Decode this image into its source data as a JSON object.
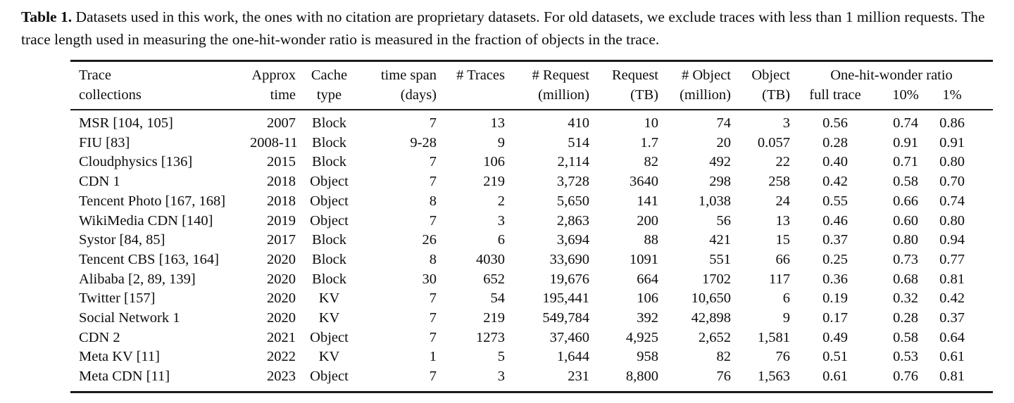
{
  "caption": {
    "label": "Table 1.",
    "text": " Datasets used in this work, the ones with no citation are proprietary datasets. For old datasets, we exclude traces with less than 1 million requests. The trace length used in measuring the one-hit-wonder ratio is measured in the fraction of objects in the trace."
  },
  "table": {
    "group_header": "One-hit-wonder ratio",
    "columns": [
      {
        "id": "trace_collections",
        "line1": "Trace",
        "line2": "collections",
        "align": "left"
      },
      {
        "id": "approx_time",
        "line1": "Approx",
        "line2": "time",
        "align": "right"
      },
      {
        "id": "cache_type",
        "line1": "Cache",
        "line2": "type",
        "align": "center"
      },
      {
        "id": "time_span_days",
        "line1": "time span",
        "line2": "(days)",
        "align": "right"
      },
      {
        "id": "num_traces",
        "line1": "# Traces",
        "line2": "",
        "align": "right"
      },
      {
        "id": "num_request",
        "line1": "# Request",
        "line2": "(million)",
        "align": "right"
      },
      {
        "id": "request_tb",
        "line1": "Request",
        "line2": "(TB)",
        "align": "right"
      },
      {
        "id": "num_object",
        "line1": "# Object",
        "line2": "(million)",
        "align": "right"
      },
      {
        "id": "object_tb",
        "line1": "Object",
        "line2": "(TB)",
        "align": "right"
      },
      {
        "id": "ohw_full_trace",
        "line1": "",
        "line2": "full trace",
        "align": "center"
      },
      {
        "id": "ohw_10pct",
        "line1": "",
        "line2": "10%",
        "align": "center"
      },
      {
        "id": "ohw_1pct",
        "line1": "",
        "line2": "1%",
        "align": "center"
      }
    ],
    "rows": [
      [
        "MSR [104, 105]",
        "2007",
        "Block",
        "7",
        "13",
        "410",
        "10",
        "74",
        "3",
        "0.56",
        "0.74",
        "0.86"
      ],
      [
        "FIU [83]",
        "2008-11",
        "Block",
        "9-28",
        "9",
        "514",
        "1.7",
        "20",
        "0.057",
        "0.28",
        "0.91",
        "0.91"
      ],
      [
        "Cloudphysics [136]",
        "2015",
        "Block",
        "7",
        "106",
        "2,114",
        "82",
        "492",
        "22",
        "0.40",
        "0.71",
        "0.80"
      ],
      [
        "CDN 1",
        "2018",
        "Object",
        "7",
        "219",
        "3,728",
        "3640",
        "298",
        "258",
        "0.42",
        "0.58",
        "0.70"
      ],
      [
        "Tencent Photo [167, 168]",
        "2018",
        "Object",
        "8",
        "2",
        "5,650",
        "141",
        "1,038",
        "24",
        "0.55",
        "0.66",
        "0.74"
      ],
      [
        "WikiMedia CDN [140]",
        "2019",
        "Object",
        "7",
        "3",
        "2,863",
        "200",
        "56",
        "13",
        "0.46",
        "0.60",
        "0.80"
      ],
      [
        "Systor [84, 85]",
        "2017",
        "Block",
        "26",
        "6",
        "3,694",
        "88",
        "421",
        "15",
        "0.37",
        "0.80",
        "0.94"
      ],
      [
        "Tencent CBS [163, 164]",
        "2020",
        "Block",
        "8",
        "4030",
        "33,690",
        "1091",
        "551",
        "66",
        "0.25",
        "0.73",
        "0.77"
      ],
      [
        "Alibaba [2, 89, 139]",
        "2020",
        "Block",
        "30",
        "652",
        "19,676",
        "664",
        "1702",
        "117",
        "0.36",
        "0.68",
        "0.81"
      ],
      [
        "Twitter [157]",
        "2020",
        "KV",
        "7",
        "54",
        "195,441",
        "106",
        "10,650",
        "6",
        "0.19",
        "0.32",
        "0.42"
      ],
      [
        "Social Network 1",
        "2020",
        "KV",
        "7",
        "219",
        "549,784",
        "392",
        "42,898",
        "9",
        "0.17",
        "0.28",
        "0.37"
      ],
      [
        "CDN 2",
        "2021",
        "Object",
        "7",
        "1273",
        "37,460",
        "4,925",
        "2,652",
        "1,581",
        "0.49",
        "0.58",
        "0.64"
      ],
      [
        "Meta KV [11]",
        "2022",
        "KV",
        "1",
        "5",
        "1,644",
        "958",
        "82",
        "76",
        "0.51",
        "0.53",
        "0.61"
      ],
      [
        "Meta CDN [11]",
        "2023",
        "Object",
        "7",
        "3",
        "231",
        "8,800",
        "76",
        "1,563",
        "0.61",
        "0.76",
        "0.81"
      ]
    ]
  }
}
